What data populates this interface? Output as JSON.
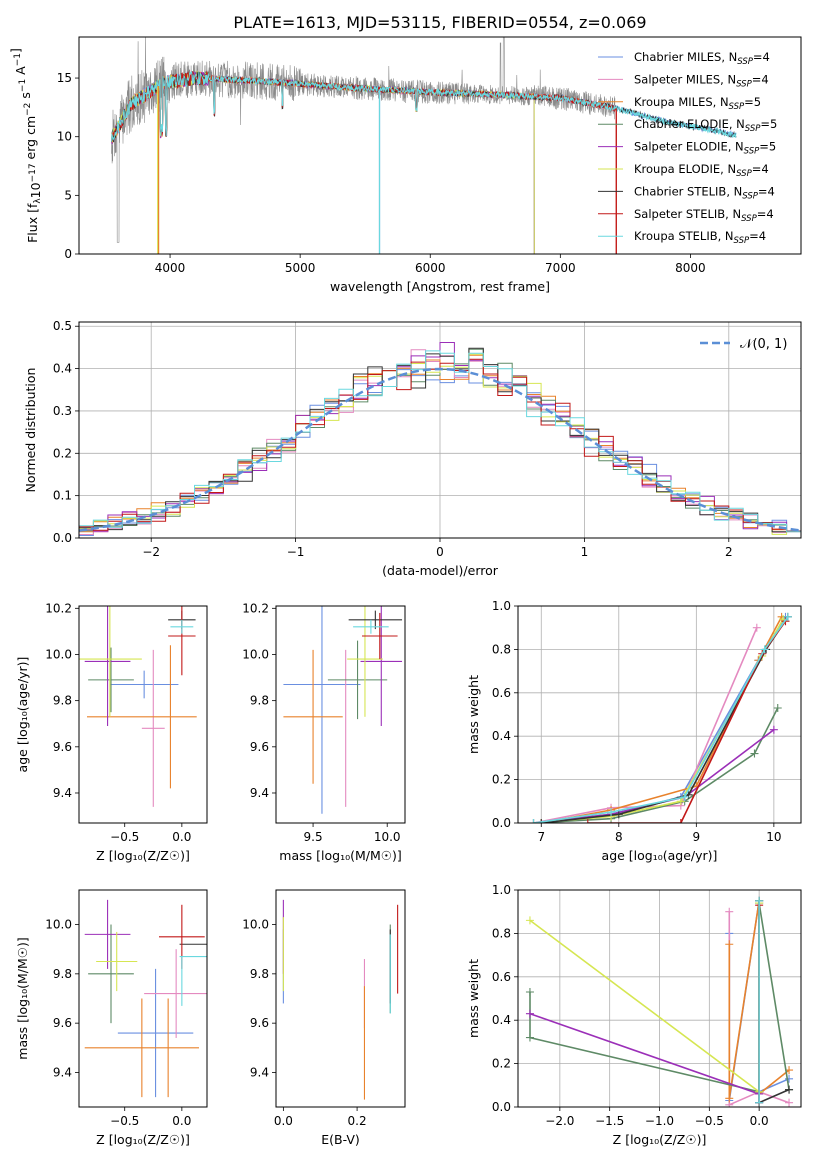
{
  "title": "PLATE=1613, MJD=53115, FIBERID=0554, z=0.069",
  "colors": {
    "chabrier_miles": "#6a8fe0",
    "salpeter_miles": "#e48ac0",
    "kroupa_miles": "#e8822c",
    "chabrier_elodie": "#5e8a66",
    "salpeter_elodie": "#9b2fb8",
    "kroupa_elodie": "#d6e652",
    "chabrier_stelib": "#333333",
    "salpeter_stelib": "#c21818",
    "kroupa_stelib": "#6ad8df",
    "data": "#8a8a8a",
    "gaussian": "#5b8fd6"
  },
  "chart_data": [
    {
      "id": "spectrum",
      "type": "line",
      "xlabel": "wavelength [Angstrom, rest frame]",
      "ylabel_parts": [
        "Flux [f",
        "λ",
        "10",
        "−17",
        " erg cm",
        "−2",
        " s",
        "−1",
        " A",
        "−1",
        "]"
      ],
      "xlim": [
        3300,
        8850
      ],
      "ylim": [
        0,
        18.5
      ],
      "xticks": [
        "4000",
        "5000",
        "6000",
        "7000",
        "8000"
      ],
      "xtick_values": [
        4000,
        5000,
        6000,
        7000,
        8000
      ],
      "yticks": [
        "0",
        "5",
        "10",
        "15"
      ],
      "ytick_values": [
        0,
        5,
        10,
        15
      ],
      "continuum": [
        [
          3550,
          9.8
        ],
        [
          3700,
          12.8
        ],
        [
          3950,
          14.6
        ],
        [
          4200,
          15.0
        ],
        [
          4600,
          14.8
        ],
        [
          5000,
          14.5
        ],
        [
          5500,
          14.1
        ],
        [
          6000,
          13.8
        ],
        [
          6500,
          13.6
        ],
        [
          7000,
          13.3
        ],
        [
          7400,
          12.5
        ],
        [
          7800,
          11.3
        ],
        [
          8200,
          10.5
        ],
        [
          8350,
          10.1
        ]
      ],
      "legend_location": "upper right",
      "legend": [
        {
          "text": "Chabrier MILES, N",
          "sub": "SSP",
          "tail": "=4",
          "color_key": "chabrier_miles"
        },
        {
          "text": "Salpeter MILES, N",
          "sub": "SSP",
          "tail": "=4",
          "color_key": "salpeter_miles"
        },
        {
          "text": "Kroupa MILES, N",
          "sub": "SSP",
          "tail": "=5",
          "color_key": "kroupa_miles"
        },
        {
          "text": "Chabrier ELODIE, N",
          "sub": "SSP",
          "tail": "=5",
          "color_key": "chabrier_elodie"
        },
        {
          "text": "Salpeter ELODIE, N",
          "sub": "SSP",
          "tail": "=5",
          "color_key": "salpeter_elodie"
        },
        {
          "text": "Kroupa ELODIE, N",
          "sub": "SSP",
          "tail": "=4",
          "color_key": "kroupa_elodie"
        },
        {
          "text": "Chabrier STELIB, N",
          "sub": "SSP",
          "tail": "=4",
          "color_key": "chabrier_stelib"
        },
        {
          "text": "Salpeter STELIB, N",
          "sub": "SSP",
          "tail": "=4",
          "color_key": "salpeter_stelib"
        },
        {
          "text": "Kroupa STELIB, N",
          "sub": "SSP",
          "tail": "=4",
          "color_key": "kroupa_stelib"
        }
      ]
    },
    {
      "id": "residuals",
      "type": "step-histogram",
      "xlabel": "(data-model)/error",
      "ylabel": "Normed distribution",
      "xlim": [
        -2.5,
        2.5
      ],
      "ylim": [
        0,
        0.51
      ],
      "xticks": [
        "−2",
        "−1",
        "0",
        "1",
        "2"
      ],
      "xtick_values": [
        -2,
        -1,
        0,
        1,
        2
      ],
      "yticks": [
        "0.0",
        "0.1",
        "0.2",
        "0.3",
        "0.4",
        "0.5"
      ],
      "ytick_values": [
        0,
        0.1,
        0.2,
        0.3,
        0.4,
        0.5
      ],
      "grid": true,
      "legend_location": "upper right",
      "legend_label": "𝒩(0, 1)",
      "bin_width": 0.1
    },
    {
      "id": "age-vs-Z",
      "type": "errorbar",
      "xlabel": "Z [log₁₀(Z/Z☉)]",
      "ylabel": "age  [log₁₀(age/yr)]",
      "xlim": [
        -0.9,
        0.22
      ],
      "ylim": [
        9.27,
        10.21
      ],
      "xticks": [
        "−0.5",
        "0.0"
      ],
      "xtick_values": [
        -0.5,
        0.0
      ],
      "yticks": [
        "9.4",
        "9.6",
        "9.8",
        "10.0",
        "10.2"
      ],
      "ytick_values": [
        9.4,
        9.6,
        9.8,
        10.0,
        10.2
      ],
      "points": [
        {
          "k": "chabrier_miles",
          "x": -0.33,
          "xe": 0.3,
          "y": 9.87,
          "ye": 0.06
        },
        {
          "k": "salpeter_miles",
          "x": -0.25,
          "xe": 0.1,
          "y": 9.68,
          "ye": 0.34
        },
        {
          "k": "kroupa_miles",
          "x": -0.6,
          "xe": 0.0,
          "y": 9.73,
          "ye": 0.0
        },
        {
          "k": "kroupa_miles",
          "x": -0.1,
          "xe": 0.0,
          "y": 9.73,
          "ye": 0.31
        },
        {
          "k": "kroupa_miles",
          "x": -0.35,
          "xe": 0.48,
          "y": 9.73,
          "ye": 0.0
        },
        {
          "k": "chabrier_elodie",
          "x": -0.62,
          "xe": 0.2,
          "y": 9.89,
          "ye": 0.14
        },
        {
          "k": "salpeter_elodie",
          "x": -0.65,
          "xe": 0.2,
          "y": 9.97,
          "ye": 0.28
        },
        {
          "k": "kroupa_elodie",
          "x": -0.63,
          "xe": 0.28,
          "y": 9.98,
          "ye": 0.25
        },
        {
          "k": "chabrier_stelib",
          "x": 0.0,
          "xe": 0.12,
          "y": 10.15,
          "ye": 0.04
        },
        {
          "k": "salpeter_stelib",
          "x": 0.0,
          "xe": 0.12,
          "y": 10.08,
          "ye": 0.17
        },
        {
          "k": "kroupa_stelib",
          "x": 0.0,
          "xe": 0.1,
          "y": 10.12,
          "ye": 0.03
        }
      ]
    },
    {
      "id": "age-vs-mass",
      "type": "errorbar",
      "xlabel": "mass [log₁₀(M/M☉)]",
      "ylabel": "",
      "xlim": [
        9.25,
        10.12
      ],
      "ylim": [
        9.27,
        10.21
      ],
      "xticks": [
        "9.5",
        "10.0"
      ],
      "xtick_values": [
        9.5,
        10.0
      ],
      "yticks": [
        "9.4",
        "9.6",
        "9.8",
        "10.0",
        "10.2"
      ],
      "ytick_values": [
        9.4,
        9.6,
        9.8,
        10.0,
        10.2
      ],
      "points": [
        {
          "k": "chabrier_miles",
          "x": 9.56,
          "xe": 0.26,
          "y": 9.87,
          "ye": 0.56
        },
        {
          "k": "salpeter_miles",
          "x": 9.72,
          "xe": 0.0,
          "y": 9.68,
          "ye": 0.34
        },
        {
          "k": "kroupa_miles",
          "x": 9.5,
          "xe": 0.2,
          "y": 9.73,
          "ye": 0.29
        },
        {
          "k": "chabrier_elodie",
          "x": 9.8,
          "xe": 0.2,
          "y": 9.89,
          "ye": 0.17
        },
        {
          "k": "salpeter_elodie",
          "x": 9.96,
          "xe": 0.14,
          "y": 9.97,
          "ye": 0.28
        },
        {
          "k": "kroupa_elodie",
          "x": 9.85,
          "xe": 0.12,
          "y": 9.98,
          "ye": 0.25
        },
        {
          "k": "chabrier_stelib",
          "x": 9.92,
          "xe": 0.18,
          "y": 10.15,
          "ye": 0.04
        },
        {
          "k": "salpeter_stelib",
          "x": 9.95,
          "xe": 0.12,
          "y": 10.08,
          "ye": 0.1
        },
        {
          "k": "kroupa_stelib",
          "x": 9.89,
          "xe": 0.12,
          "y": 10.12,
          "ye": 0.03
        }
      ]
    },
    {
      "id": "massweight-vs-age",
      "type": "line",
      "xlabel": "age  [log₁₀(age/yr)]",
      "ylabel": "mass weight",
      "xlim": [
        6.7,
        10.35
      ],
      "ylim": [
        0,
        1.0
      ],
      "xticks": [
        "7",
        "8",
        "9",
        "10"
      ],
      "xtick_values": [
        7,
        8,
        9,
        10
      ],
      "yticks": [
        "0.0",
        "0.2",
        "0.4",
        "0.6",
        "0.8",
        "1.0"
      ],
      "ytick_values": [
        0,
        0.2,
        0.4,
        0.6,
        0.8,
        1.0
      ],
      "grid": true,
      "series": [
        {
          "k": "chabrier_miles",
          "x": [
            6.9,
            7.9,
            8.8,
            9.8,
            10.15
          ],
          "y": [
            0.0,
            0.04,
            0.12,
            0.75,
            0.95
          ]
        },
        {
          "k": "salpeter_miles",
          "x": [
            6.9,
            7.9,
            8.8,
            9.78
          ],
          "y": [
            0.0,
            0.07,
            0.08,
            0.9
          ]
        },
        {
          "k": "kroupa_miles",
          "x": [
            7.0,
            7.9,
            9.0,
            9.8,
            10.1
          ],
          "y": [
            0.0,
            0.06,
            0.17,
            0.75,
            0.95
          ]
        },
        {
          "k": "chabrier_elodie",
          "x": [
            6.9,
            7.9,
            8.85,
            9.75,
            10.05
          ],
          "y": [
            0.0,
            0.02,
            0.1,
            0.32,
            0.53
          ]
        },
        {
          "k": "salpeter_elodie",
          "x": [
            6.9,
            7.9,
            8.85,
            10.0
          ],
          "y": [
            0.0,
            0.04,
            0.12,
            0.43
          ]
        },
        {
          "k": "kroupa_elodie",
          "x": [
            6.9,
            7.9,
            8.8,
            9.85,
            10.12
          ],
          "y": [
            0.0,
            0.03,
            0.1,
            0.77,
            0.94
          ]
        },
        {
          "k": "chabrier_stelib",
          "x": [
            7.0,
            8.0,
            8.9,
            9.9,
            10.18
          ],
          "y": [
            0.0,
            0.04,
            0.13,
            0.8,
            0.95
          ]
        },
        {
          "k": "salpeter_stelib",
          "x": [
            7.6,
            8.8,
            9.85,
            10.15
          ],
          "y": [
            0.0,
            0.0,
            0.78,
            0.93
          ]
        },
        {
          "k": "kroupa_stelib",
          "x": [
            6.9,
            7.9,
            8.85,
            9.88,
            10.18
          ],
          "y": [
            0.0,
            0.05,
            0.12,
            0.8,
            0.95
          ]
        }
      ]
    },
    {
      "id": "mass-vs-Z",
      "type": "errorbar",
      "xlabel": "Z [log₁₀(Z/Z☉)]",
      "ylabel": "mass [log₁₀(M/M☉)]",
      "xlim": [
        -0.9,
        0.22
      ],
      "ylim": [
        9.26,
        10.14
      ],
      "xticks": [
        "−0.5",
        "0.0"
      ],
      "xtick_values": [
        -0.5,
        0.0
      ],
      "yticks": [
        "9.4",
        "9.6",
        "9.8",
        "10.0"
      ],
      "ytick_values": [
        9.4,
        9.6,
        9.8,
        10.0
      ],
      "points": [
        {
          "k": "chabrier_miles",
          "x": -0.23,
          "xe": 0.33,
          "y": 9.56,
          "ye": 0.26
        },
        {
          "k": "salpeter_miles",
          "x": -0.05,
          "xe": 0.28,
          "y": 9.72,
          "ye": 0.18
        },
        {
          "k": "kroupa_miles",
          "x": -0.35,
          "xe": 0.5,
          "y": 9.5,
          "ye": 0.2
        },
        {
          "k": "kroupa_miles",
          "x": -0.12,
          "xe": 0.0,
          "y": 9.5,
          "ye": 0.2
        },
        {
          "k": "chabrier_elodie",
          "x": -0.62,
          "xe": 0.2,
          "y": 9.8,
          "ye": 0.2
        },
        {
          "k": "salpeter_elodie",
          "x": -0.65,
          "xe": 0.2,
          "y": 9.96,
          "ye": 0.14
        },
        {
          "k": "kroupa_elodie",
          "x": -0.57,
          "xe": 0.18,
          "y": 9.85,
          "ye": 0.12
        },
        {
          "k": "chabrier_stelib",
          "x": 0.1,
          "xe": 0.12,
          "y": 9.92,
          "ye": 0.0
        },
        {
          "k": "salpeter_stelib",
          "x": 0.0,
          "xe": 0.2,
          "y": 9.95,
          "ye": 0.13
        },
        {
          "k": "kroupa_stelib",
          "x": 0.1,
          "xe": 0.12,
          "y": 9.87,
          "ye": 0.0
        },
        {
          "k": "kroupa_stelib",
          "x": 0.0,
          "xe": 0.0,
          "y": 9.77,
          "ye": 0.1
        }
      ]
    },
    {
      "id": "mass-vs-EBV",
      "type": "errorbar",
      "xlabel": "E(B-V)",
      "ylabel": "",
      "xlim": [
        -0.02,
        0.33
      ],
      "ylim": [
        9.26,
        10.14
      ],
      "xticks": [
        "0.0",
        "0.2"
      ],
      "xtick_values": [
        0.0,
        0.2
      ],
      "yticks": [
        "9.4",
        "9.6",
        "9.8",
        "10.0"
      ],
      "ytick_values": [
        9.4,
        9.6,
        9.8,
        10.0
      ],
      "points": [
        {
          "k": "chabrier_miles",
          "x": 0.0,
          "xe": 0.0,
          "y": 9.83,
          "ye": 0.15
        },
        {
          "k": "salpeter_miles",
          "x": 0.22,
          "xe": 0.0,
          "y": 9.72,
          "ye": 0.14
        },
        {
          "k": "kroupa_miles",
          "x": 0.22,
          "xe": 0.0,
          "y": 9.52,
          "ye": 0.23
        },
        {
          "k": "chabrier_elodie",
          "x": 0.29,
          "xe": 0.0,
          "y": 9.82,
          "ye": 0.18
        },
        {
          "k": "salpeter_elodie",
          "x": 0.0,
          "xe": 0.0,
          "y": 9.95,
          "ye": 0.15
        },
        {
          "k": "kroupa_elodie",
          "x": 0.0,
          "xe": 0.0,
          "y": 9.88,
          "ye": 0.15
        },
        {
          "k": "chabrier_stelib",
          "x": 0.29,
          "xe": 0.0,
          "y": 9.83,
          "ye": 0.15
        },
        {
          "k": "salpeter_stelib",
          "x": 0.31,
          "xe": 0.0,
          "y": 9.9,
          "ye": 0.18
        },
        {
          "k": "kroupa_stelib",
          "x": 0.29,
          "xe": 0.0,
          "y": 9.8,
          "ye": 0.16
        }
      ]
    },
    {
      "id": "massweight-vs-Z",
      "type": "line",
      "xlabel": "Z [log₁₀(Z/Z☉)]",
      "ylabel": "mass weight",
      "xlim": [
        -2.42,
        0.42
      ],
      "ylim": [
        0,
        1.0
      ],
      "xticks": [
        "−2.0",
        "−1.5",
        "−1.0",
        "−0.5",
        "0.0"
      ],
      "xtick_values": [
        -2.0,
        -1.5,
        -1.0,
        -0.5,
        0.0
      ],
      "yticks": [
        "0.0",
        "0.2",
        "0.4",
        "0.6",
        "0.8",
        "1.0"
      ],
      "ytick_values": [
        0,
        0.2,
        0.4,
        0.6,
        0.8,
        1.0
      ],
      "grid": true,
      "series": [
        {
          "k": "chabrier_miles",
          "x": [
            -0.3,
            -0.3,
            0.0,
            0.0,
            0.3
          ],
          "y": [
            0.8,
            0.03,
            0.95,
            0.07,
            0.13
          ]
        },
        {
          "k": "salpeter_miles",
          "x": [
            -0.3,
            -0.3,
            0.0,
            0.3
          ],
          "y": [
            0.9,
            0.01,
            0.07,
            0.02
          ]
        },
        {
          "k": "kroupa_miles",
          "x": [
            -0.3,
            -0.3,
            0.0,
            0.0,
            0.3
          ],
          "y": [
            0.75,
            0.04,
            0.95,
            0.06,
            0.17
          ]
        },
        {
          "k": "chabrier_elodie",
          "x": [
            -2.3,
            -2.3,
            0.0,
            0.0,
            0.3
          ],
          "y": [
            0.53,
            0.32,
            0.07,
            0.94,
            0.08
          ]
        },
        {
          "k": "salpeter_elodie",
          "x": [
            -2.3,
            0.0,
            0.0
          ],
          "y": [
            0.43,
            0.06,
            0.02
          ]
        },
        {
          "k": "kroupa_elodie",
          "x": [
            -2.3,
            0.0,
            0.0
          ],
          "y": [
            0.86,
            0.07,
            0.94
          ]
        },
        {
          "k": "chabrier_stelib",
          "x": [
            0.0,
            0.0,
            0.3
          ],
          "y": [
            0.95,
            0.02,
            0.08
          ]
        },
        {
          "k": "salpeter_stelib",
          "x": [
            0.0,
            0.0
          ],
          "y": [
            0.93,
            0.0
          ]
        },
        {
          "k": "kroupa_stelib",
          "x": [
            0.0,
            0.0
          ],
          "y": [
            0.95,
            0.02
          ]
        }
      ]
    }
  ]
}
